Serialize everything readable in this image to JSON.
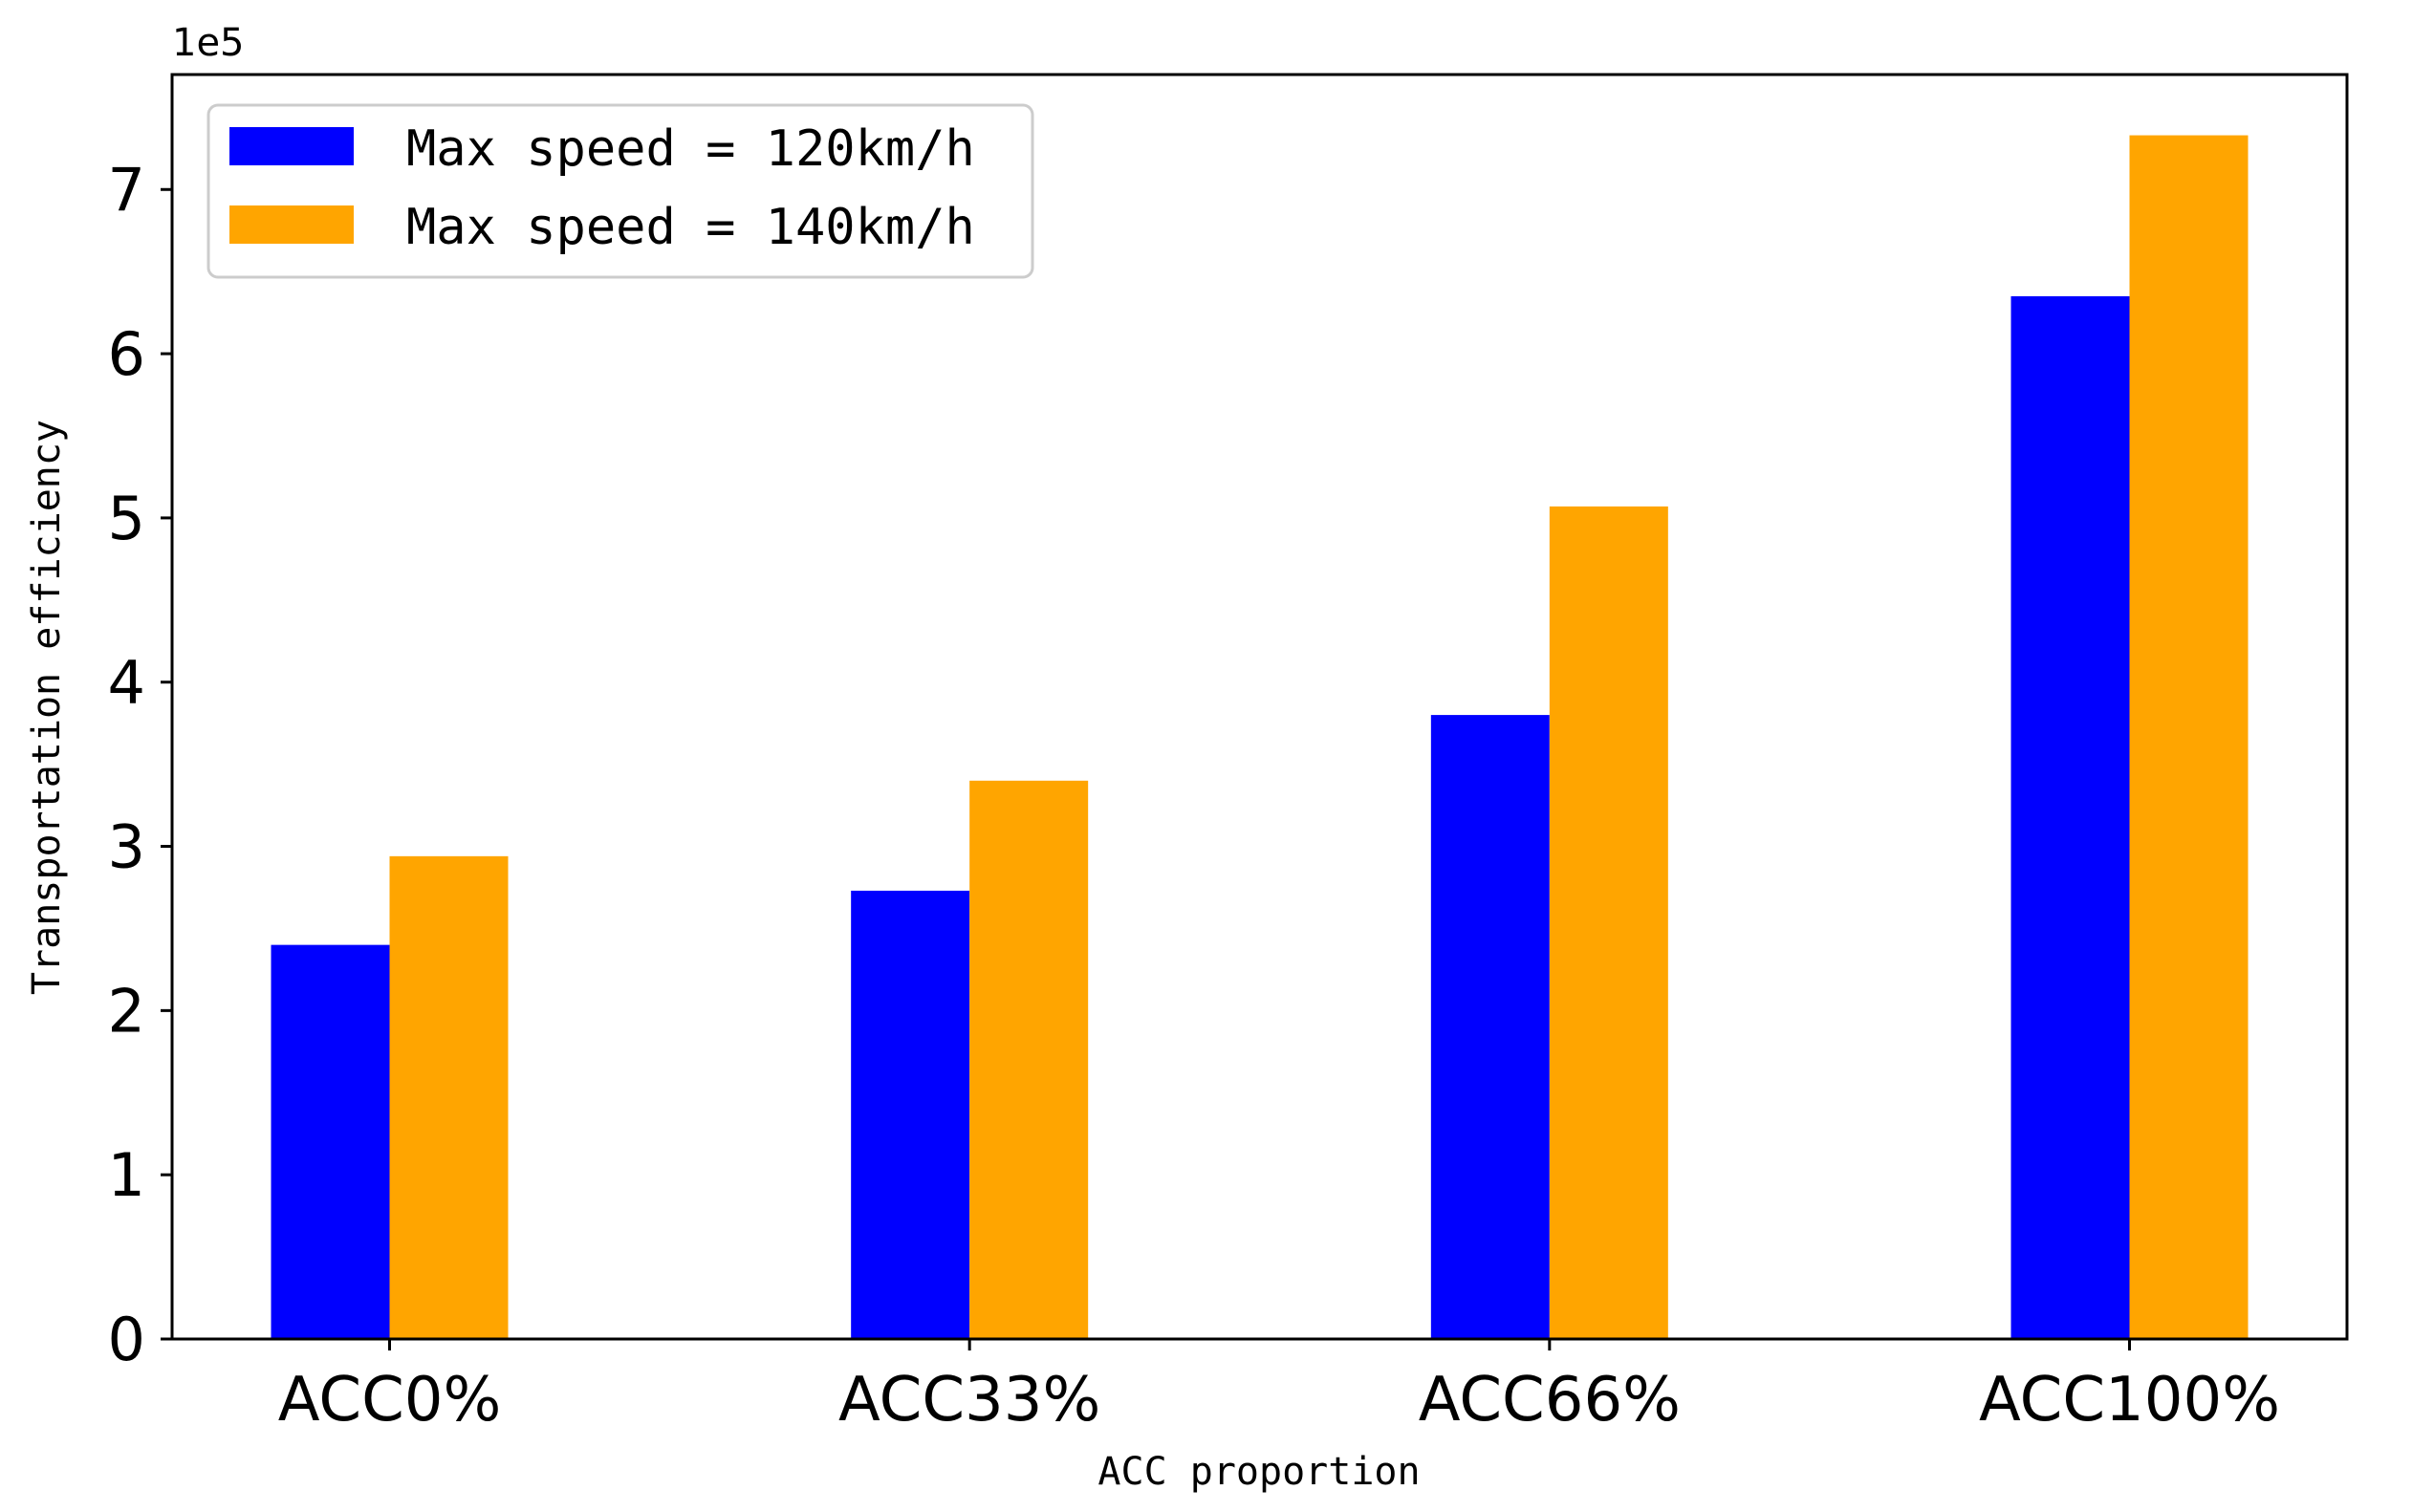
{
  "chart_data": {
    "type": "bar",
    "categories": [
      "ACC0%",
      "ACC33%",
      "ACC66%",
      "ACC100%"
    ],
    "series": [
      {
        "name": "Max speed = 120km/h",
        "color": "#0000ff",
        "values": [
          240000,
          273000,
          380000,
          635000
        ]
      },
      {
        "name": "Max speed = 140km/h",
        "color": "#ffa500",
        "values": [
          294000,
          340000,
          507000,
          733000
        ]
      }
    ],
    "xlabel": "ACC proportion",
    "ylabel": "Transportation efficiency",
    "y_offset_label": "1e5",
    "y_ticks": [
      0,
      1,
      2,
      3,
      4,
      5,
      6,
      7
    ],
    "y_scale": 100000,
    "ylim": [
      0,
      770000
    ],
    "grid": false,
    "legend_position": "top-left"
  }
}
